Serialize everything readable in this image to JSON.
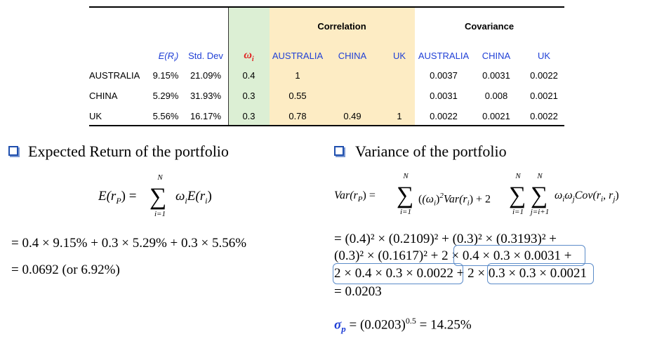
{
  "table": {
    "group_headers": {
      "correlation": "Correlation",
      "covariance": "Covariance"
    },
    "columns": {
      "er": "E(R",
      "er_sub": "i",
      "er_close": ")",
      "std": "Std. Dev",
      "weight": "ω",
      "weight_sub": "i",
      "corr": [
        "AUSTRALIA",
        "CHINA",
        "UK"
      ],
      "cov": [
        "AUSTRALIA",
        "CHINA",
        "UK"
      ]
    },
    "rows": [
      {
        "name": "AUSTRALIA",
        "er": "9.15%",
        "std": "21.09%",
        "weight": "0.4",
        "corr": [
          "1",
          "",
          ""
        ],
        "cov": [
          "0.0037",
          "0.0031",
          "0.0022"
        ]
      },
      {
        "name": "CHINA",
        "er": "5.29%",
        "std": "31.93%",
        "weight": "0.3",
        "corr": [
          "0.55",
          "",
          ""
        ],
        "cov": [
          "0.0031",
          "0.008",
          "0.0021"
        ]
      },
      {
        "name": "UK",
        "er": "5.56%",
        "std": "16.17%",
        "weight": "0.3",
        "corr": [
          "0.78",
          "0.49",
          "1"
        ],
        "cov": [
          "0.0022",
          "0.0021",
          "0.0022"
        ]
      }
    ],
    "colors": {
      "weight_band": "#dcefd4",
      "corr_band": "#fdecc4",
      "blue_text": "#1f3fd6",
      "red_text": "#e0201f"
    }
  },
  "left": {
    "heading": "Expected Return of the portfolio",
    "formula_lhs": "E(r",
    "formula_lhs_sub": "P",
    "formula_lhs_close": ") =",
    "sum_top": "N",
    "sum_bottom": "i=1",
    "formula_rhs": "ω",
    "formula_rhs_sub": "i",
    "formula_rhs_rest": "E(r",
    "formula_rhs_rest_sub": "i",
    "formula_rhs_close": ")",
    "line1": "= 0.4 × 9.15% + 0.3 × 5.29% + 0.3 × 5.56%",
    "line2": "=  0.0692 (or 6.92%)"
  },
  "right": {
    "heading": "Variance of the portfolio",
    "formula": {
      "lhs": "Var(r",
      "lhs_sub": "P",
      "lhs_close": ") =",
      "sum1_top": "N",
      "sum1_bottom": "i=1",
      "term1": "(ω",
      "term1_sub": "i",
      "term1_close": ")",
      "term1_sup": "2",
      "term1_rest": "Var(r",
      "term1_rest_sub": "i",
      "term1_rest_close": ") + 2",
      "sum2_top": "N",
      "sum2_bottom": "i=1",
      "sum3_top": "N",
      "sum3_bottom": "j=i+1",
      "term2": "ω",
      "term2_sub_i": "i",
      "term2_mid": "ω",
      "term2_sub_j": "j",
      "term2_cov": "Cov(r",
      "term2_cov_sub_i": "i",
      "term2_cov_comma": ", r",
      "term2_cov_sub_j": "j",
      "term2_cov_close": ")"
    },
    "line1": "= (0.4)² × (0.2109)² + (0.3)² × (0.3193)² +",
    "line2": "(0.3)² × (0.1617)² + 2 × 0.4 × 0.3 × 0.0031 +",
    "line3": "2 × 0.4 × 0.3 × 0.0022 + 2 × 0.3 × 0.3 × 0.0021",
    "line4": "= 0.0203",
    "sigma": "σ",
    "sigma_sub": "p",
    "sigma_rest": " = (0.0203)",
    "sigma_sup": "0.5",
    "sigma_result": " = 14.25%"
  }
}
